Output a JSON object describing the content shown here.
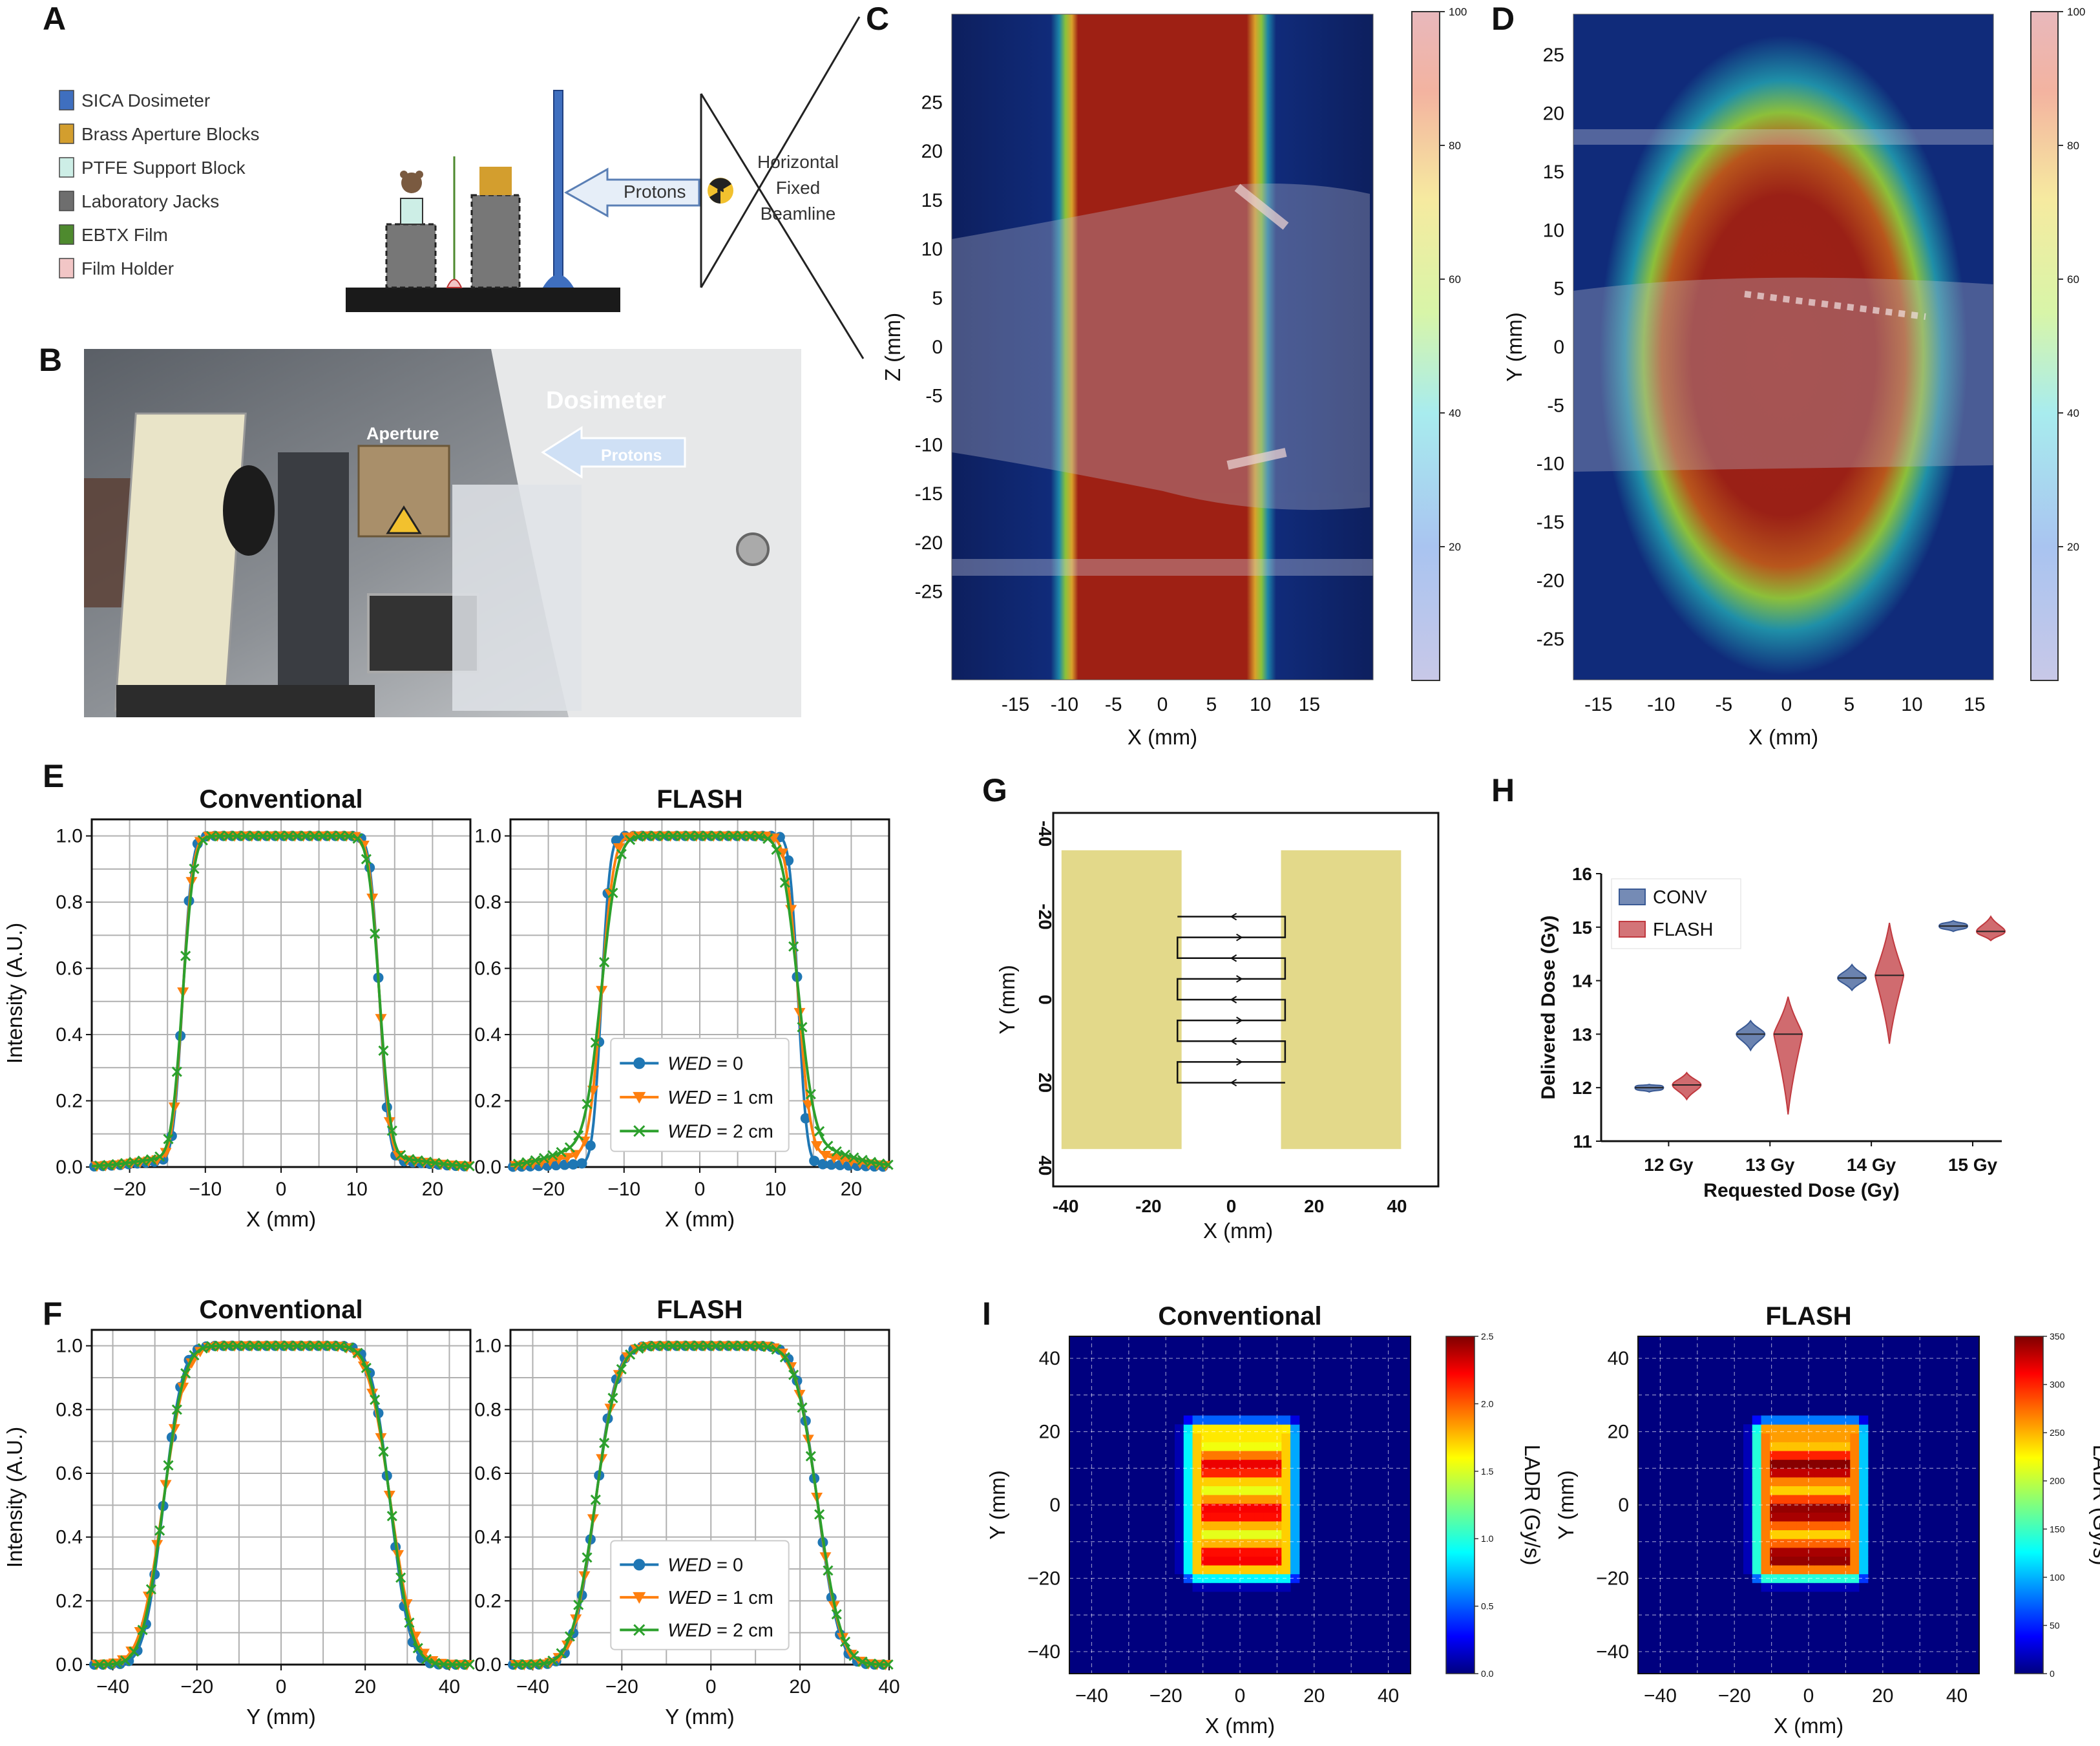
{
  "panel_labels": [
    "A",
    "B",
    "C",
    "D",
    "E",
    "F",
    "G",
    "H",
    "I"
  ],
  "schematic": {
    "legend": [
      {
        "label": "SICA Dosimeter",
        "color": "#3f6fbf"
      },
      {
        "label": "Brass Aperture Blocks",
        "color": "#d39e2e"
      },
      {
        "label": "PTFE Support Block",
        "color": "#cdeee6"
      },
      {
        "label": "Laboratory Jacks",
        "color": "#6e6e6e"
      },
      {
        "label": "EBTX Film",
        "color": "#4e8a2e"
      },
      {
        "label": "Film Holder",
        "color": "#f2c6c6"
      }
    ],
    "protons_label": "Protons",
    "beamline_label": [
      "Horizontal",
      "Fixed",
      "Beamline"
    ]
  },
  "photo": {
    "labels": {
      "dosimeter": "Dosimeter",
      "aperture": "Aperture",
      "protons": "Protons"
    }
  },
  "chart_data": [
    {
      "id": "C",
      "type": "heatmap",
      "xlabel": "X (mm)",
      "ylabel": "Z (mm)",
      "xticks": [
        -15,
        -10,
        -5,
        0,
        5,
        10,
        15
      ],
      "yticks": [
        25,
        20,
        15,
        10,
        5,
        0,
        -5,
        -10,
        -15,
        -20,
        -25
      ],
      "xlim": [
        -21.5,
        21.5
      ],
      "ylim": [
        -34,
        34
      ],
      "field_x": [
        -10.5,
        12.5
      ],
      "colorbar_ticks": [
        20,
        40,
        60,
        80,
        100
      ]
    },
    {
      "id": "D",
      "type": "heatmap",
      "xlabel": "X (mm)",
      "ylabel": "Y (mm)",
      "xticks": [
        -15,
        -10,
        -5,
        0,
        5,
        10,
        15
      ],
      "yticks": [
        25,
        20,
        15,
        10,
        5,
        0,
        -5,
        -10,
        -15,
        -20,
        -25
      ],
      "xlim": [
        -17,
        16.5
      ],
      "ylim": [
        -28.5,
        28.5
      ],
      "field_x": [
        -10.5,
        11.5
      ],
      "field_y": [
        -22,
        20
      ],
      "colorbar_ticks": [
        20,
        40,
        60,
        80,
        100
      ]
    },
    {
      "id": "E-conv",
      "type": "line",
      "title": "Conventional",
      "xlabel": "X (mm)",
      "ylabel": "Intensity (A.U.)",
      "xlim": [
        -25,
        25
      ],
      "ylim": [
        0,
        1.05
      ],
      "xticks": [
        -20,
        -10,
        0,
        10,
        20
      ],
      "yticks": [
        0.0,
        0.2,
        0.4,
        0.6,
        0.8,
        1.0
      ],
      "profile": {
        "kind": "edge",
        "left": -13,
        "right": 13,
        "sharp": [
          1.0,
          1.1,
          1.2
        ],
        "tail": [
          0.02,
          0.025,
          0.03
        ]
      },
      "series": [
        {
          "name": "WED = 0",
          "color": "#1f77b4",
          "marker": "circle"
        },
        {
          "name": "WED = 1 cm",
          "color": "#ff7f0e",
          "marker": "triangle"
        },
        {
          "name": "WED = 2 cm",
          "color": "#2ca02c",
          "marker": "x"
        }
      ]
    },
    {
      "id": "E-flash",
      "type": "line",
      "title": "FLASH",
      "xlabel": "X (mm)",
      "ylabel": "",
      "xlim": [
        -25,
        25
      ],
      "ylim": [
        0,
        1.05
      ],
      "xticks": [
        -20,
        -10,
        0,
        10,
        20
      ],
      "yticks": [
        0.0,
        0.2,
        0.4,
        0.6,
        0.8,
        1.0
      ],
      "profile": {
        "kind": "edge",
        "left": -13,
        "right": 13,
        "sharp": [
          0.9,
          1.3,
          1.7
        ],
        "tail": [
          0.01,
          0.04,
          0.07
        ]
      },
      "series": [
        {
          "name": "WED = 0",
          "color": "#1f77b4",
          "marker": "circle"
        },
        {
          "name": "WED = 1 cm",
          "color": "#ff7f0e",
          "marker": "triangle"
        },
        {
          "name": "WED = 2 cm",
          "color": "#2ca02c",
          "marker": "x"
        }
      ],
      "legend": "lower-center",
      "legend_labels": [
        {
          "base": "WED",
          "value": " = 0"
        },
        {
          "base": "WED",
          "value": " = 1 cm"
        },
        {
          "base": "WED",
          "value": " = 2 cm"
        }
      ]
    },
    {
      "id": "F-conv",
      "type": "line",
      "title": "Conventional",
      "xlabel": "Y (mm)",
      "ylabel": "Intensity (A.U.)",
      "xlim": [
        -45,
        45
      ],
      "ylim": [
        0,
        1.05
      ],
      "xticks": [
        -40,
        -20,
        0,
        20,
        40
      ],
      "yticks": [
        0.0,
        0.2,
        0.4,
        0.6,
        0.8,
        1.0
      ],
      "profile": {
        "kind": "round",
        "left": -28,
        "right": 26,
        "sharp": [
          3.6,
          4.2,
          3.9
        ],
        "tail": [
          0.0,
          0.02,
          0.01
        ]
      },
      "series": [
        {
          "name": "WED = 0",
          "color": "#1f77b4",
          "marker": "circle"
        },
        {
          "name": "WED = 1 cm",
          "color": "#ff7f0e",
          "marker": "triangle"
        },
        {
          "name": "WED = 2 cm",
          "color": "#2ca02c",
          "marker": "x"
        }
      ]
    },
    {
      "id": "F-flash",
      "type": "line",
      "title": "FLASH",
      "xlabel": "Y (mm)",
      "ylabel": "",
      "xlim": [
        -45,
        40
      ],
      "ylim": [
        0,
        1.05
      ],
      "xticks": [
        -40,
        -20,
        0,
        20,
        40
      ],
      "yticks": [
        0.0,
        0.2,
        0.4,
        0.6,
        0.8,
        1.0
      ],
      "profile": {
        "kind": "round",
        "left": -26,
        "right": 24,
        "sharp": [
          3.8,
          4.0,
          4.1
        ],
        "tail": [
          0.0,
          0.005,
          0.01
        ]
      },
      "series": [
        {
          "name": "WED = 0",
          "color": "#1f77b4",
          "marker": "circle"
        },
        {
          "name": "WED = 1 cm",
          "color": "#ff7f0e",
          "marker": "triangle"
        },
        {
          "name": "WED = 2 cm",
          "color": "#2ca02c",
          "marker": "x"
        }
      ],
      "legend": "lower-center",
      "legend_labels": [
        {
          "base": "WED",
          "value": " = 0"
        },
        {
          "base": "WED",
          "value": " = 1 cm"
        },
        {
          "base": "WED",
          "value": " = 2 cm"
        }
      ]
    },
    {
      "id": "G",
      "type": "diagram",
      "xlabel": "X (mm)",
      "ylabel": "Y (mm)",
      "xlim": [
        -43,
        50
      ],
      "ylim": [
        -45,
        45
      ],
      "xticks": [
        -40,
        -20,
        0,
        20,
        40
      ],
      "yticks": [
        -40,
        -20,
        0,
        20,
        40
      ],
      "blocks": [
        [
          -41,
          -12,
          -36,
          36
        ],
        [
          12,
          41,
          -36,
          36
        ]
      ],
      "raster_lines_y": [
        -20,
        -15,
        -10,
        -5,
        0,
        5,
        10,
        15,
        20
      ],
      "raster_x": [
        -13,
        13
      ]
    },
    {
      "id": "H",
      "type": "violin",
      "xlabel": "Requested Dose (Gy)",
      "ylabel": "Delivered Dose (Gy)",
      "categories": [
        "12 Gy",
        "13 Gy",
        "14 Gy",
        "15 Gy"
      ],
      "ylim": [
        11,
        16
      ],
      "yticks": [
        11,
        12,
        13,
        14,
        15,
        16
      ],
      "series": [
        {
          "name": "CONV",
          "color": "#3a5a95",
          "medians": [
            12.0,
            13.0,
            14.05,
            15.02
          ],
          "ranges": [
            [
              11.92,
              12.06
            ],
            [
              12.7,
              13.25
            ],
            [
              13.82,
              14.3
            ],
            [
              14.92,
              15.12
            ]
          ]
        },
        {
          "name": "FLASH",
          "color": "#c0393f",
          "medians": [
            12.05,
            13.0,
            14.1,
            14.92
          ],
          "ranges": [
            [
              11.78,
              12.28
            ],
            [
              11.5,
              13.7
            ],
            [
              12.82,
              15.08
            ],
            [
              14.75,
              15.2
            ]
          ]
        }
      ],
      "legend": "top-left"
    },
    {
      "id": "I-conv",
      "type": "heatmap",
      "title": "Conventional",
      "xlabel": "X (mm)",
      "ylabel": "Y (mm)",
      "colorbar_label": "LADR (Gy/s)",
      "xlim": [
        -46,
        46
      ],
      "ylim": [
        -46,
        46
      ],
      "xticks": [
        -40,
        -20,
        0,
        20,
        40
      ],
      "yticks": [
        40,
        20,
        0,
        -20,
        -40
      ],
      "colorbar_ticks": [
        "0.0",
        "0.5",
        "1.0",
        "1.5",
        "2.0",
        "2.5"
      ],
      "vmax": 2.5
    },
    {
      "id": "I-flash",
      "type": "heatmap",
      "title": "FLASH",
      "xlabel": "X (mm)",
      "ylabel": "Y (mm)",
      "colorbar_label": "LADR (Gy/s)",
      "xlim": [
        -46,
        46
      ],
      "ylim": [
        -46,
        46
      ],
      "xticks": [
        -40,
        -20,
        0,
        20,
        40
      ],
      "yticks": [
        40,
        20,
        0,
        -20,
        -40
      ],
      "colorbar_ticks": [
        "0",
        "50",
        "100",
        "150",
        "200",
        "250",
        "300",
        "350"
      ],
      "vmax": 350
    }
  ]
}
